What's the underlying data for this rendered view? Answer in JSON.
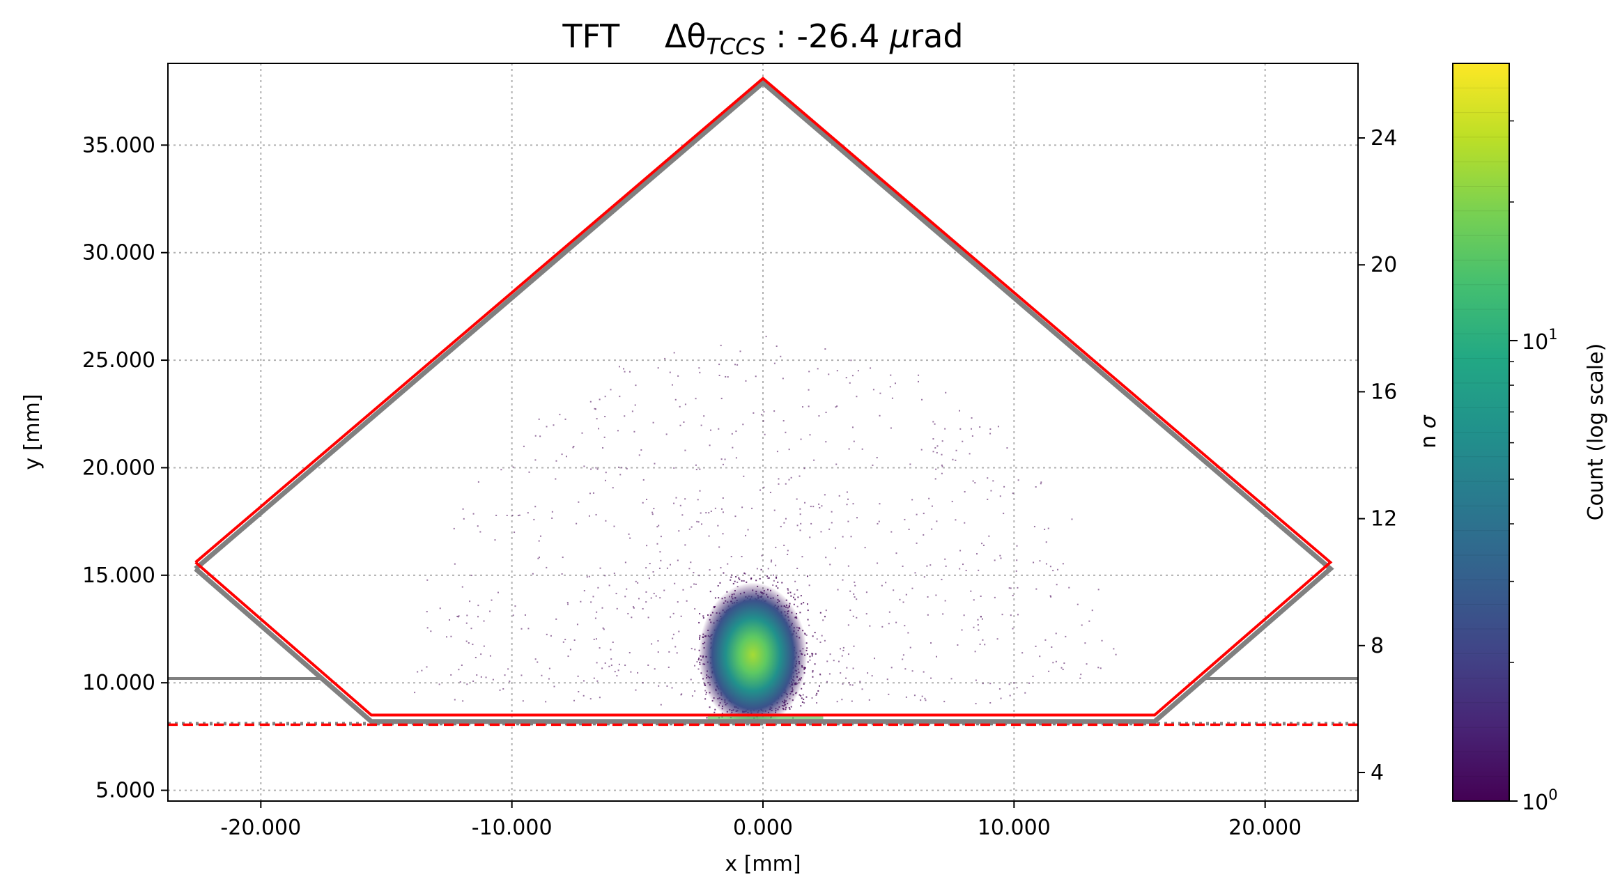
{
  "chart_data": {
    "type": "heatmap",
    "title_parts": {
      "name": "TFT",
      "delta": "Δθ",
      "subscript": "TCCS",
      "colon": " :",
      "value": " -26.4 ",
      "mu": "μ",
      "unit": "rad"
    },
    "xlabel": "x [mm]",
    "ylabel": "y [mm]",
    "y2label_prefix": "n ",
    "y2label_sigma": "σ",
    "colorbar_label": "Count (log scale)",
    "xlim": [
      -23.7,
      23.7
    ],
    "ylim": [
      4.5,
      38.8
    ],
    "y2lim": [
      3.1,
      26.35
    ],
    "x_ticks": [
      -20,
      -10,
      0,
      10,
      20
    ],
    "x_tick_labels": [
      "-20.000",
      "-10.000",
      "0.000",
      "10.000",
      "20.000"
    ],
    "y_ticks": [
      5,
      10,
      15,
      20,
      25,
      30,
      35
    ],
    "y_tick_labels": [
      "5.000",
      "10.000",
      "15.000",
      "20.000",
      "25.000",
      "30.000",
      "35.000"
    ],
    "y2_ticks": [
      4,
      8,
      12,
      16,
      20,
      24
    ],
    "y2_tick_labels": [
      "4",
      "8",
      "12",
      "16",
      "20",
      "24"
    ],
    "colorbar_scale": "log",
    "colorbar_range": [
      1,
      40
    ],
    "colorbar_major_ticks": [
      1,
      10
    ],
    "colorbar_tick_base": "10",
    "colorbar_tick_exponents": [
      "0",
      "1"
    ],
    "colorbar_minor_ticks": [
      2,
      3,
      4,
      5,
      6,
      7,
      8,
      9,
      20,
      30
    ],
    "colormap": "viridis",
    "grid": true,
    "red_outline": [
      [
        -22.6,
        15.6
      ],
      [
        0,
        38.1
      ],
      [
        22.6,
        15.6
      ],
      [
        15.6,
        8.5
      ],
      [
        -15.6,
        8.5
      ],
      [
        -22.6,
        15.6
      ]
    ],
    "gray_outline": [
      [
        -22.6,
        15.3
      ],
      [
        0,
        37.9
      ],
      [
        22.6,
        15.3
      ],
      [
        15.6,
        8.2
      ],
      [
        -15.6,
        8.2
      ],
      [
        -22.6,
        15.3
      ]
    ],
    "gray_horizontal_left": {
      "y": 10.2,
      "x": [
        -23.7,
        -17.5
      ]
    },
    "gray_horizontal_right": {
      "y": 10.2,
      "x": [
        17.5,
        23.7
      ]
    },
    "red_dashed_line_y": 8.05,
    "gray_dotted_line_y": 8.1,
    "beam_spot": {
      "x_center": -0.4,
      "y_center": 11.3,
      "sigma_x": 0.9,
      "sigma_y": 1.4,
      "x_range": [
        -2.6,
        2.8
      ],
      "y_range": [
        8.3,
        15.3
      ],
      "peak_count": 40
    },
    "colors": {
      "red": "#ff0000",
      "gray": "#808080",
      "grid": "#b0b0b0",
      "viridis_low": "#440154",
      "viridis_high": "#fde725"
    }
  }
}
